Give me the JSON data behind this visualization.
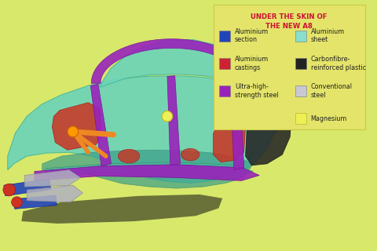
{
  "background_color": "#d8e86b",
  "legend_bg_color": "#e6e66a",
  "legend_title": "UNDER THE SKIN OF\nTHE NEW A8",
  "legend_title_color": "#cc1133",
  "legend_items_left": [
    {
      "label": "Aluminium\nsection",
      "color": "#2244bb"
    },
    {
      "label": "Aluminium\ncastings",
      "color": "#cc2233"
    },
    {
      "label": "Ultra-high-\nstrength steel",
      "color": "#9922bb"
    }
  ],
  "legend_items_right": [
    {
      "label": "Aluminium\nsheet",
      "color": "#88ddcc"
    },
    {
      "label": "Carbonfibre-\nreinforced plastic",
      "color": "#222222"
    },
    {
      "label": "Conventional\nsteel",
      "color": "#c8c8d4"
    }
  ],
  "legend_magnesium": {
    "label": "Magnesium",
    "color": "#eeee55"
  },
  "title_fontsize": 6.2,
  "label_fontsize": 5.8,
  "colors": {
    "teal": "#6ed4b8",
    "teal_dark": "#4ab89a",
    "purple": "#9922bb",
    "red": "#cc3322",
    "blue": "#2244bb",
    "orange": "#ee8822",
    "silver": "#b0b0c0",
    "black": "#1a1a1a",
    "yellow": "#eeee55",
    "dark_teal": "#3a9e88"
  }
}
